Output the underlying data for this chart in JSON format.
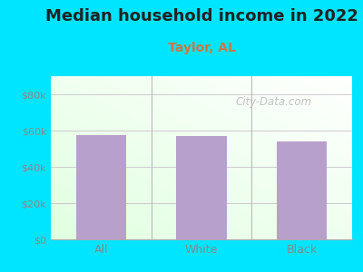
{
  "title": "Median household income in 2022",
  "subtitle": "Taylor, AL",
  "categories": [
    "All",
    "White",
    "Black"
  ],
  "values": [
    57500,
    57000,
    54000
  ],
  "bar_color": "#b8a0cc",
  "title_fontsize": 13,
  "subtitle_fontsize": 10,
  "subtitle_color": "#cc7744",
  "background_color": "#00e5ff",
  "tick_color": "#888888",
  "ylim": [
    0,
    90000
  ],
  "yticks": [
    0,
    20000,
    40000,
    60000,
    80000
  ],
  "ytick_labels": [
    "$0",
    "$20k",
    "$40k",
    "$60k",
    "$80k"
  ],
  "watermark": "City-Data.com",
  "bar_width": 0.5
}
